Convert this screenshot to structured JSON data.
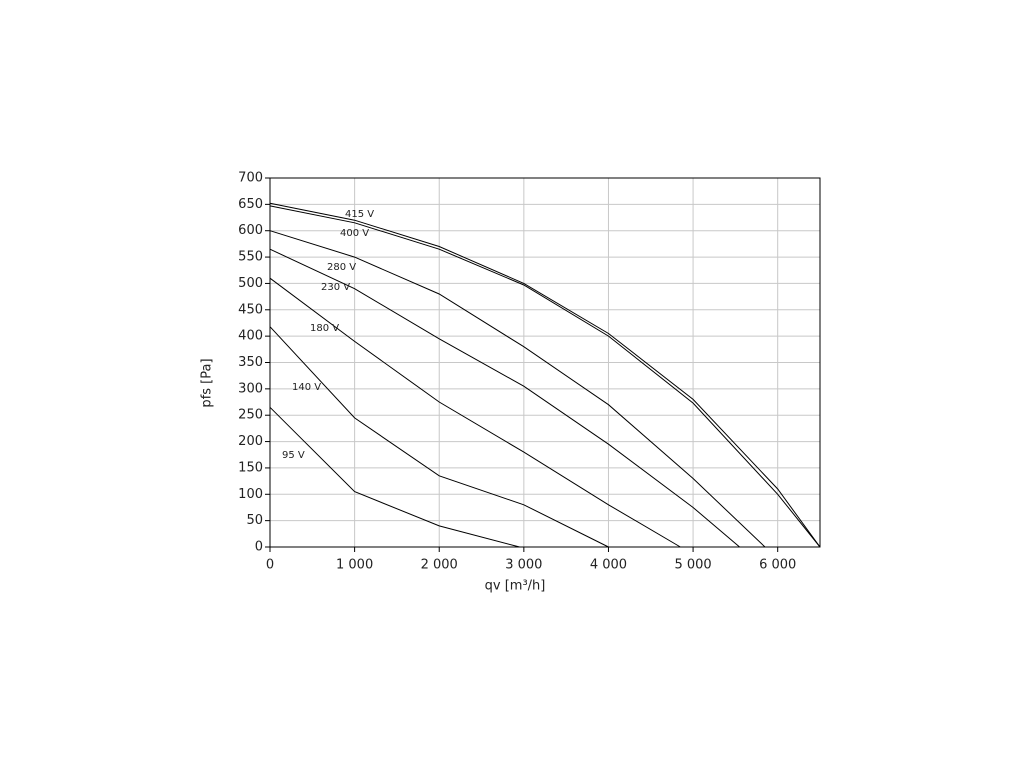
{
  "chart_data": {
    "type": "line",
    "xlabel": "qv [m³/h]",
    "ylabel": "pfs [Pa]",
    "xlim": [
      0,
      6500
    ],
    "ylim": [
      0,
      700
    ],
    "xticks": [
      0,
      {
        "value": 1000,
        "label": "1 000"
      },
      {
        "value": 2000,
        "label": "2 000"
      },
      {
        "value": 3000,
        "label": "3 000"
      },
      {
        "value": 4000,
        "label": "4 000"
      },
      {
        "value": 5000,
        "label": "5 000"
      },
      {
        "value": 6000,
        "label": "6 000"
      }
    ],
    "yticks": [
      0,
      50,
      100,
      150,
      200,
      250,
      300,
      350,
      400,
      450,
      500,
      550,
      600,
      650,
      700
    ],
    "grid": true,
    "series": [
      {
        "name": "415 V",
        "color": "#000000",
        "x": [
          0,
          1000,
          2000,
          3000,
          4000,
          5000,
          6000,
          6500
        ],
        "values": [
          652,
          620,
          570,
          500,
          405,
          280,
          110,
          0
        ]
      },
      {
        "name": "400 V",
        "color": "#000000",
        "x": [
          0,
          1000,
          2000,
          3000,
          4000,
          5000,
          6000,
          6500
        ],
        "values": [
          647,
          615,
          565,
          497,
          400,
          273,
          100,
          0
        ]
      },
      {
        "name": "280 V",
        "color": "#000000",
        "x": [
          0,
          1000,
          2000,
          3000,
          4000,
          5000,
          5850
        ],
        "values": [
          600,
          550,
          480,
          380,
          270,
          130,
          0
        ]
      },
      {
        "name": "230 V",
        "color": "#000000",
        "x": [
          0,
          1000,
          2000,
          3000,
          4000,
          5000,
          5550
        ],
        "values": [
          565,
          490,
          395,
          305,
          195,
          75,
          0
        ]
      },
      {
        "name": "180 V",
        "color": "#000000",
        "x": [
          0,
          1000,
          2000,
          3000,
          4000,
          4850
        ],
        "values": [
          510,
          390,
          275,
          180,
          80,
          0
        ]
      },
      {
        "name": "140 V",
        "color": "#000000",
        "x": [
          0,
          1000,
          2000,
          3000,
          4000
        ],
        "values": [
          418,
          245,
          135,
          80,
          0
        ]
      },
      {
        "name": "95 V",
        "color": "#000000",
        "x": [
          0,
          1000,
          2000,
          2950
        ],
        "values": [
          265,
          105,
          40,
          0
        ]
      }
    ]
  }
}
